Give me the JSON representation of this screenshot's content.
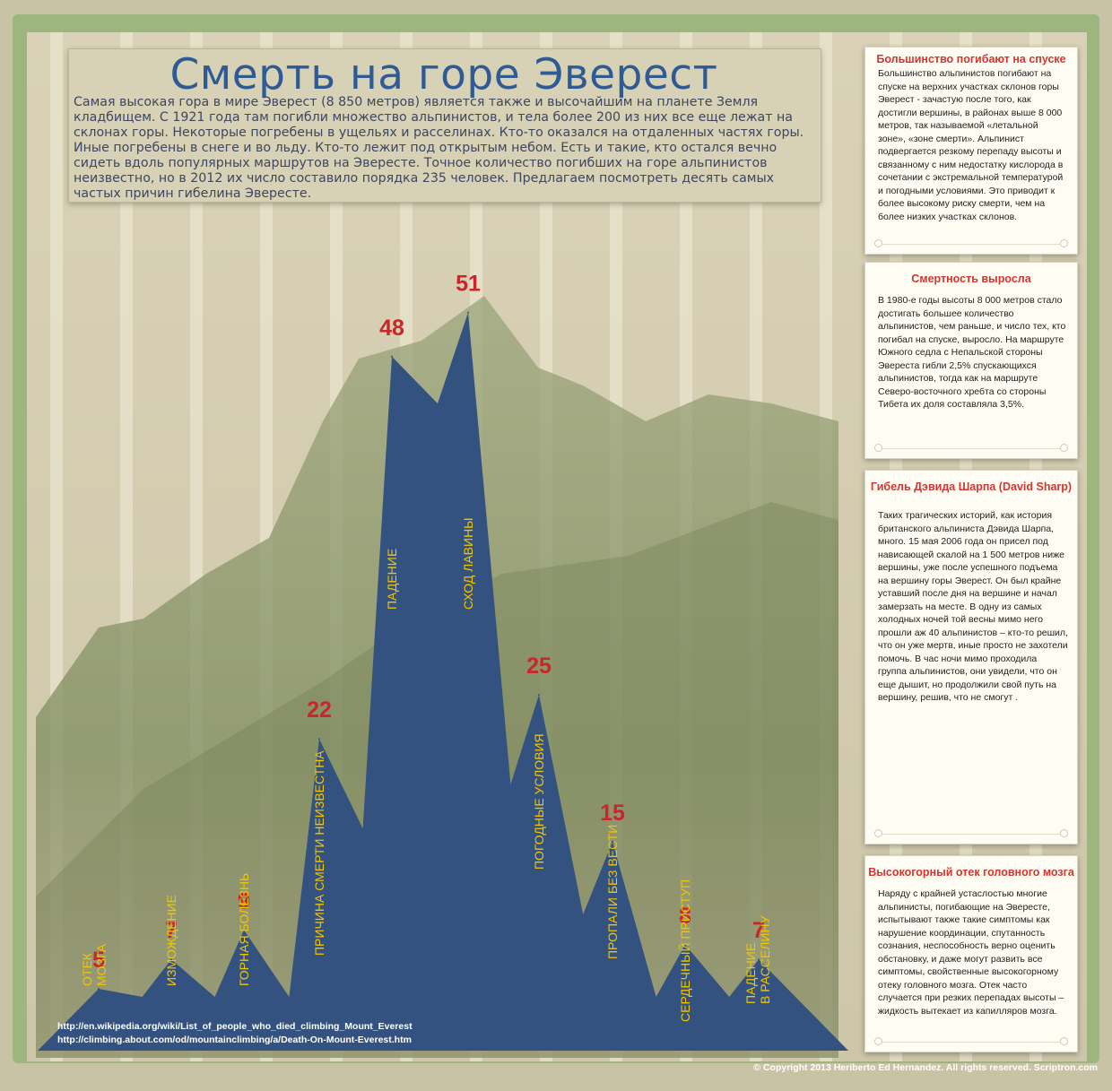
{
  "title": "Смерть на горе Эверест",
  "intro": "Самая высокая гора в мире Эверест (8 850 метров) является также и высочайшим на планете Земля кладбищем. С 1921 года там погибли множество альпинистов, и тела более 200 из них все еще лежат на склонах горы. Некоторые погребены в ущельях и расселинах. Кто-то оказался на отдаленных частях горы. Иные погребены в снеге и во льду. Кто-то лежит под открытым небом. Есть и такие, кто остался вечно сидеть вдоль популярных маршрутов на Эвересте. Точное количество погибших на горе альпинистов неизвестно, но в 2012 их число составило порядка 235 человек. Предлагаем посмотреть десять самых частых причин гибелина Эвересте.",
  "colors": {
    "peaks": "#33527f",
    "value": "#c8262a",
    "label": "#f2c500",
    "panel_title": "#d23630"
  },
  "chart_data": {
    "type": "area",
    "title": "",
    "xlabel": "",
    "ylabel": "",
    "categories": [
      "Отек мозга",
      "Изможден­ие",
      "Горная болезнь",
      "Причина смерти неизвестна",
      "Падение",
      "Сход лавины",
      "Погодные условия",
      "Пропали без вести",
      "Сердечный приступ",
      "Падение в расселину"
    ],
    "label_lines": [
      [
        "ОТЕК",
        "МОЗГА"
      ],
      [
        "ИЗМОЖДЕНИЕ"
      ],
      [
        "ГОРНАЯ БОЛЕЗНЬ"
      ],
      [
        "ПРИЧИНА СМЕРТИ НЕИЗВЕСТНА"
      ],
      [
        "ПАДЕНИЕ"
      ],
      [
        "СХОД ЛАВИНЫ"
      ],
      [
        "ПОГОДНЫЕ УСЛОВИЯ"
      ],
      [
        "ПРОПАЛИ БЕЗ ВЕСТИ"
      ],
      [
        "СЕРДЕЧНЫЙ ПРИСТУП"
      ],
      [
        "ПАДЕНИЕ",
        "В РАССЕЛИНУ"
      ]
    ],
    "values": [
      5,
      7,
      9,
      22,
      48,
      51,
      25,
      15,
      8,
      7
    ],
    "grid": false,
    "legend": "none"
  },
  "panels": [
    {
      "title": "Большинство погибают на спуске",
      "text": "Большинство альпинистов погибают на спуске на верхних участках склонов горы Эверест - зачастую после того, как достигли вершины, в районах выше 8 000 метров, так называемой «летальной зоне», «зоне смерти». Альпинист подвергается резкому перепаду высоты и связанному с ним недостатку кислорода в сочетании с экстремальной температурой и погодными условиями. Это приводит к более высокому риску смерти, чем на более низких участках склонов."
    },
    {
      "title": "Смертность выросла",
      "text": "В 1980-е годы высоты 8 000 метров стало достигать большее количество альпинистов, чем раньше, и число тех, кто погибал на спуске, выросло. На маршруте Южного седла с Непальской стороны Эвереста гибли 2,5% спускающихся альпинистов, тогда как на маршруте Северо-восточного хребта со стороны Тибета их доля составляла 3,5%."
    },
    {
      "title": "Гибель Дэвида Шарпа (David Sharp)",
      "text": "Таких трагических историй, как история британского альпиниста Дэвида Шарпа, много. 15 мая 2006 года он присел под нависающей скалой на 1 500 метров ниже вершины, уже после успешного подъема на вершину горы Эверест. Он был крайне уставший после дня на вершине и начал замерзать на месте. В одну из самых холодных ночей той весны мимо него прошли аж 40 альпинистов – кто-то решил, что он уже мертв, иные просто не захотели помочь. В час ночи мимо проходила группа альпинистов, они увидели, что он еще дышит, но продолжили свой путь на вершину, решив, что не смогут ."
    },
    {
      "title": "Высокогорный отек головного мозга",
      "text": "Наряду с крайней устаслостью многие альпинисты, погибающие на Эвересте, испытывают также такие симптомы как нарушение координации, спутанность сознания, неспособность верно оценить обстановку, и даже могут развить все симптомы, свойственные высокогорному отеку головного мозга. Отек часто случается при резких перепадах высоты – жидкость вытекает из капилляров мозга."
    }
  ],
  "sources": [
    "http://en.wikipedia.org/wiki/List_of_people_who_died_climbing_Mount_Everest",
    "http://climbing.about.com/od/mountainclimbing/a/Death-On-Mount-Everest.htm"
  ],
  "copyright": "© Copyright 2013 Heriberto Ed Hernandez. All rights reserved. Scriptron.com"
}
